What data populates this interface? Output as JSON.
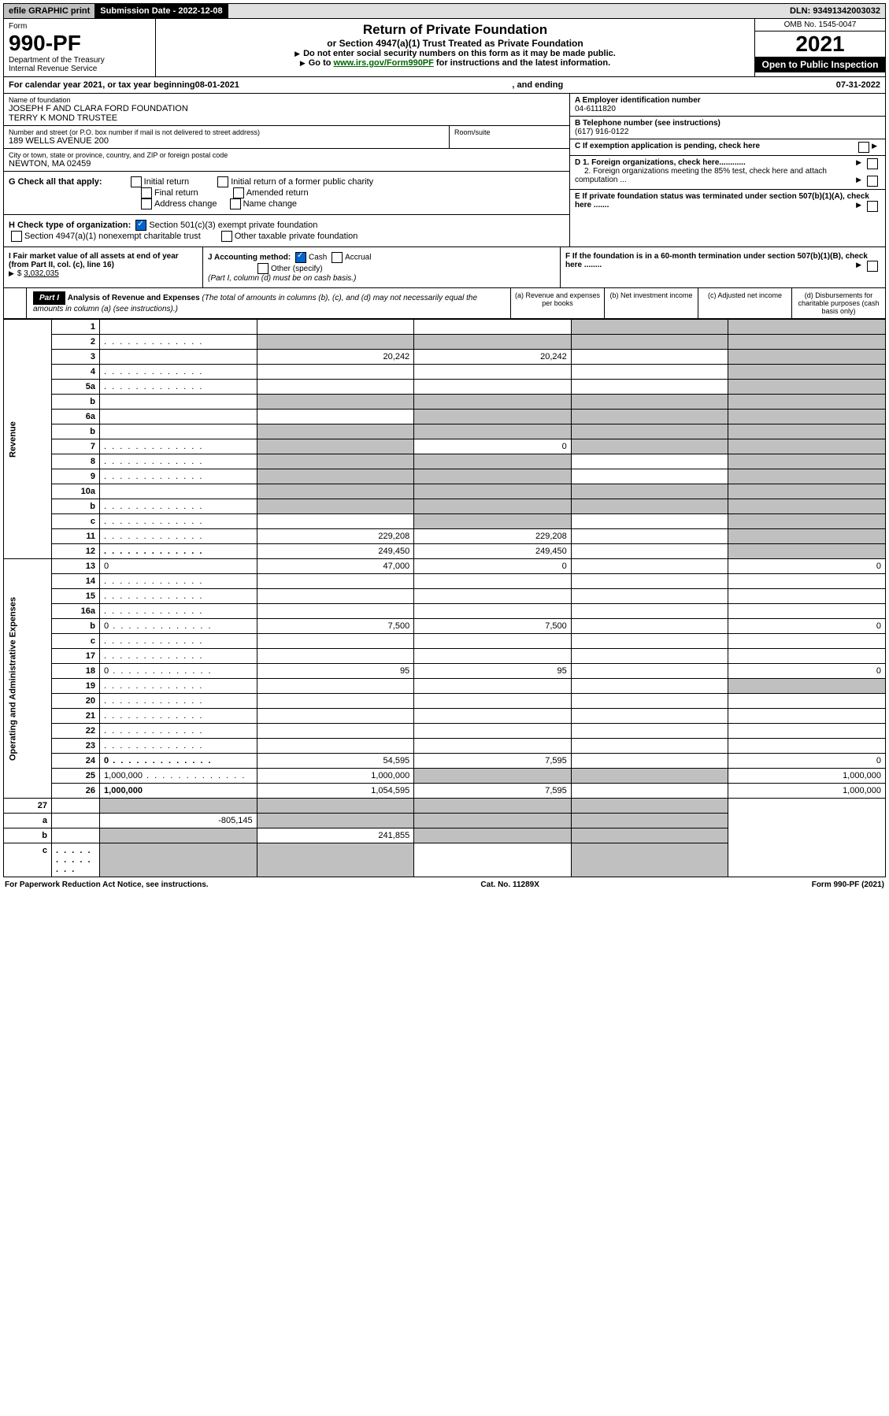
{
  "topbar": {
    "efile": "efile GRAPHIC print",
    "submission_label": "Submission Date - ",
    "submission_date": "2022-12-08",
    "dln_label": "DLN: ",
    "dln": "93491342003032"
  },
  "header": {
    "form_word": "Form",
    "form_number": "990-PF",
    "dept": "Department of the Treasury",
    "irs": "Internal Revenue Service",
    "title": "Return of Private Foundation",
    "subtitle": "or Section 4947(a)(1) Trust Treated as Private Foundation",
    "note1": "Do not enter social security numbers on this form as it may be made public.",
    "note2_prefix": "Go to ",
    "note2_link": "www.irs.gov/Form990PF",
    "note2_suffix": " for instructions and the latest information.",
    "omb": "OMB No. 1545-0047",
    "year": "2021",
    "open": "Open to Public Inspection"
  },
  "calendar": {
    "prefix": "For calendar year 2021, or tax year beginning ",
    "begin": "08-01-2021",
    "mid": ", and ending ",
    "end": "07-31-2022"
  },
  "info": {
    "name_label": "Name of foundation",
    "name1": "JOSEPH F AND CLARA FORD FOUNDATION",
    "name2": "TERRY K MOND TRUSTEE",
    "addr_label": "Number and street (or P.O. box number if mail is not delivered to street address)",
    "addr": "189 WELLS AVENUE 200",
    "room_label": "Room/suite",
    "city_label": "City or town, state or province, country, and ZIP or foreign postal code",
    "city": "NEWTON, MA  02459",
    "ein_label": "A Employer identification number",
    "ein": "04-6111820",
    "tel_label": "B Telephone number (see instructions)",
    "tel": "(617) 916-0122",
    "c_label": "C If exemption application is pending, check here",
    "d1_label": "D 1. Foreign organizations, check here............",
    "d2_label": "2. Foreign organizations meeting the 85% test, check here and attach computation ...",
    "e_label": "E  If private foundation status was terminated under section 507(b)(1)(A), check here .......",
    "f_label": "F  If the foundation is in a 60-month termination under section 507(b)(1)(B), check here ........"
  },
  "g": {
    "label": "G Check all that apply:",
    "opts": [
      "Initial return",
      "Final return",
      "Address change",
      "Initial return of a former public charity",
      "Amended return",
      "Name change"
    ]
  },
  "h": {
    "label": "H Check type of organization:",
    "opt1": "Section 501(c)(3) exempt private foundation",
    "opt2": "Section 4947(a)(1) nonexempt charitable trust",
    "opt3": "Other taxable private foundation"
  },
  "i": {
    "label": "I Fair market value of all assets at end of year (from Part II, col. (c), line 16)",
    "value": "3,032,035"
  },
  "j": {
    "label": "J Accounting method:",
    "cash": "Cash",
    "accrual": "Accrual",
    "other": "Other (specify)",
    "note": "(Part I, column (d) must be on cash basis.)"
  },
  "part1": {
    "label": "Part I",
    "title": "Analysis of Revenue and Expenses",
    "title_note": " (The total of amounts in columns (b), (c), and (d) may not necessarily equal the amounts in column (a) (see instructions).)",
    "col_a": "(a)   Revenue and expenses per books",
    "col_b": "(b)   Net investment income",
    "col_c": "(c)   Adjusted net income",
    "col_d": "(d)   Disbursements for charitable purposes (cash basis only)"
  },
  "sections": {
    "revenue": "Revenue",
    "expenses": "Operating and Administrative Expenses"
  },
  "rows": [
    {
      "n": "1",
      "d": "",
      "a": "",
      "b": "",
      "c": "",
      "shade_c": true,
      "shade_d": true
    },
    {
      "n": "2",
      "d": "",
      "dots": true,
      "a": "",
      "b": "",
      "c": "",
      "shade_a": true,
      "shade_b": true,
      "shade_c": true,
      "shade_d": true
    },
    {
      "n": "3",
      "d": "",
      "a": "20,242",
      "b": "20,242",
      "c": "",
      "shade_d": true
    },
    {
      "n": "4",
      "d": "",
      "dots": true,
      "a": "",
      "b": "",
      "c": "",
      "shade_d": true
    },
    {
      "n": "5a",
      "d": "",
      "dots": true,
      "a": "",
      "b": "",
      "c": "",
      "shade_d": true
    },
    {
      "n": "b",
      "d": "",
      "a": "",
      "b": "",
      "c": "",
      "shade_a": true,
      "shade_b": true,
      "shade_c": true,
      "shade_d": true
    },
    {
      "n": "6a",
      "d": "",
      "a": "",
      "b": "",
      "c": "",
      "shade_b": true,
      "shade_c": true,
      "shade_d": true
    },
    {
      "n": "b",
      "d": "",
      "a": "",
      "b": "",
      "c": "",
      "shade_a": true,
      "shade_b": true,
      "shade_c": true,
      "shade_d": true
    },
    {
      "n": "7",
      "d": "",
      "dots": true,
      "a": "",
      "b": "0",
      "c": "",
      "shade_a": true,
      "shade_c": true,
      "shade_d": true
    },
    {
      "n": "8",
      "d": "",
      "dots": true,
      "a": "",
      "b": "",
      "c": "",
      "shade_a": true,
      "shade_b": true,
      "shade_d": true
    },
    {
      "n": "9",
      "d": "",
      "dots": true,
      "a": "",
      "b": "",
      "c": "",
      "shade_a": true,
      "shade_b": true,
      "shade_d": true
    },
    {
      "n": "10a",
      "d": "",
      "a": "",
      "b": "",
      "c": "",
      "shade_a": true,
      "shade_b": true,
      "shade_c": true,
      "shade_d": true
    },
    {
      "n": "b",
      "d": "",
      "dots": true,
      "a": "",
      "b": "",
      "c": "",
      "shade_a": true,
      "shade_b": true,
      "shade_c": true,
      "shade_d": true
    },
    {
      "n": "c",
      "d": "",
      "dots": true,
      "a": "",
      "b": "",
      "c": "",
      "shade_b": true,
      "shade_d": true
    },
    {
      "n": "11",
      "d": "",
      "dots": true,
      "a": "229,208",
      "b": "229,208",
      "c": "",
      "shade_d": true
    },
    {
      "n": "12",
      "d": "",
      "dots": true,
      "a": "249,450",
      "b": "249,450",
      "c": "",
      "shade_d": true,
      "bold": true
    }
  ],
  "exp_rows": [
    {
      "n": "13",
      "d": "0",
      "a": "47,000",
      "b": "0",
      "c": ""
    },
    {
      "n": "14",
      "d": "",
      "dots": true,
      "a": "",
      "b": "",
      "c": ""
    },
    {
      "n": "15",
      "d": "",
      "dots": true,
      "a": "",
      "b": "",
      "c": ""
    },
    {
      "n": "16a",
      "d": "",
      "dots": true,
      "a": "",
      "b": "",
      "c": ""
    },
    {
      "n": "b",
      "d": "0",
      "dots": true,
      "a": "7,500",
      "b": "7,500",
      "c": ""
    },
    {
      "n": "c",
      "d": "",
      "dots": true,
      "a": "",
      "b": "",
      "c": ""
    },
    {
      "n": "17",
      "d": "",
      "dots": true,
      "a": "",
      "b": "",
      "c": ""
    },
    {
      "n": "18",
      "d": "0",
      "dots": true,
      "a": "95",
      "b": "95",
      "c": ""
    },
    {
      "n": "19",
      "d": "",
      "dots": true,
      "a": "",
      "b": "",
      "c": "",
      "shade_d": true
    },
    {
      "n": "20",
      "d": "",
      "dots": true,
      "a": "",
      "b": "",
      "c": ""
    },
    {
      "n": "21",
      "d": "",
      "dots": true,
      "a": "",
      "b": "",
      "c": ""
    },
    {
      "n": "22",
      "d": "",
      "dots": true,
      "a": "",
      "b": "",
      "c": ""
    },
    {
      "n": "23",
      "d": "",
      "dots": true,
      "a": "",
      "b": "",
      "c": ""
    },
    {
      "n": "24",
      "d": "0",
      "dots": true,
      "a": "54,595",
      "b": "7,595",
      "c": "",
      "bold": true
    },
    {
      "n": "25",
      "d": "1,000,000",
      "dots": true,
      "a": "1,000,000",
      "b": "",
      "c": "",
      "shade_b": true,
      "shade_c": true
    },
    {
      "n": "26",
      "d": "1,000,000",
      "a": "1,054,595",
      "b": "7,595",
      "c": "",
      "bold": true
    }
  ],
  "bottom_rows": [
    {
      "n": "27",
      "d": "",
      "a": "",
      "b": "",
      "c": "",
      "shade_a": true,
      "shade_b": true,
      "shade_c": true,
      "shade_d": true
    },
    {
      "n": "a",
      "d": "",
      "a": "-805,145",
      "b": "",
      "c": "",
      "shade_b": true,
      "shade_c": true,
      "shade_d": true,
      "bold": true
    },
    {
      "n": "b",
      "d": "",
      "a": "",
      "b": "241,855",
      "c": "",
      "shade_a": true,
      "shade_c": true,
      "shade_d": true,
      "bold": true
    },
    {
      "n": "c",
      "d": "",
      "dots": true,
      "a": "",
      "b": "",
      "c": "",
      "shade_a": true,
      "shade_b": true,
      "shade_d": true,
      "bold": true
    }
  ],
  "footer": {
    "left": "For Paperwork Reduction Act Notice, see instructions.",
    "mid": "Cat. No. 11289X",
    "right": "Form 990-PF (2021)"
  }
}
